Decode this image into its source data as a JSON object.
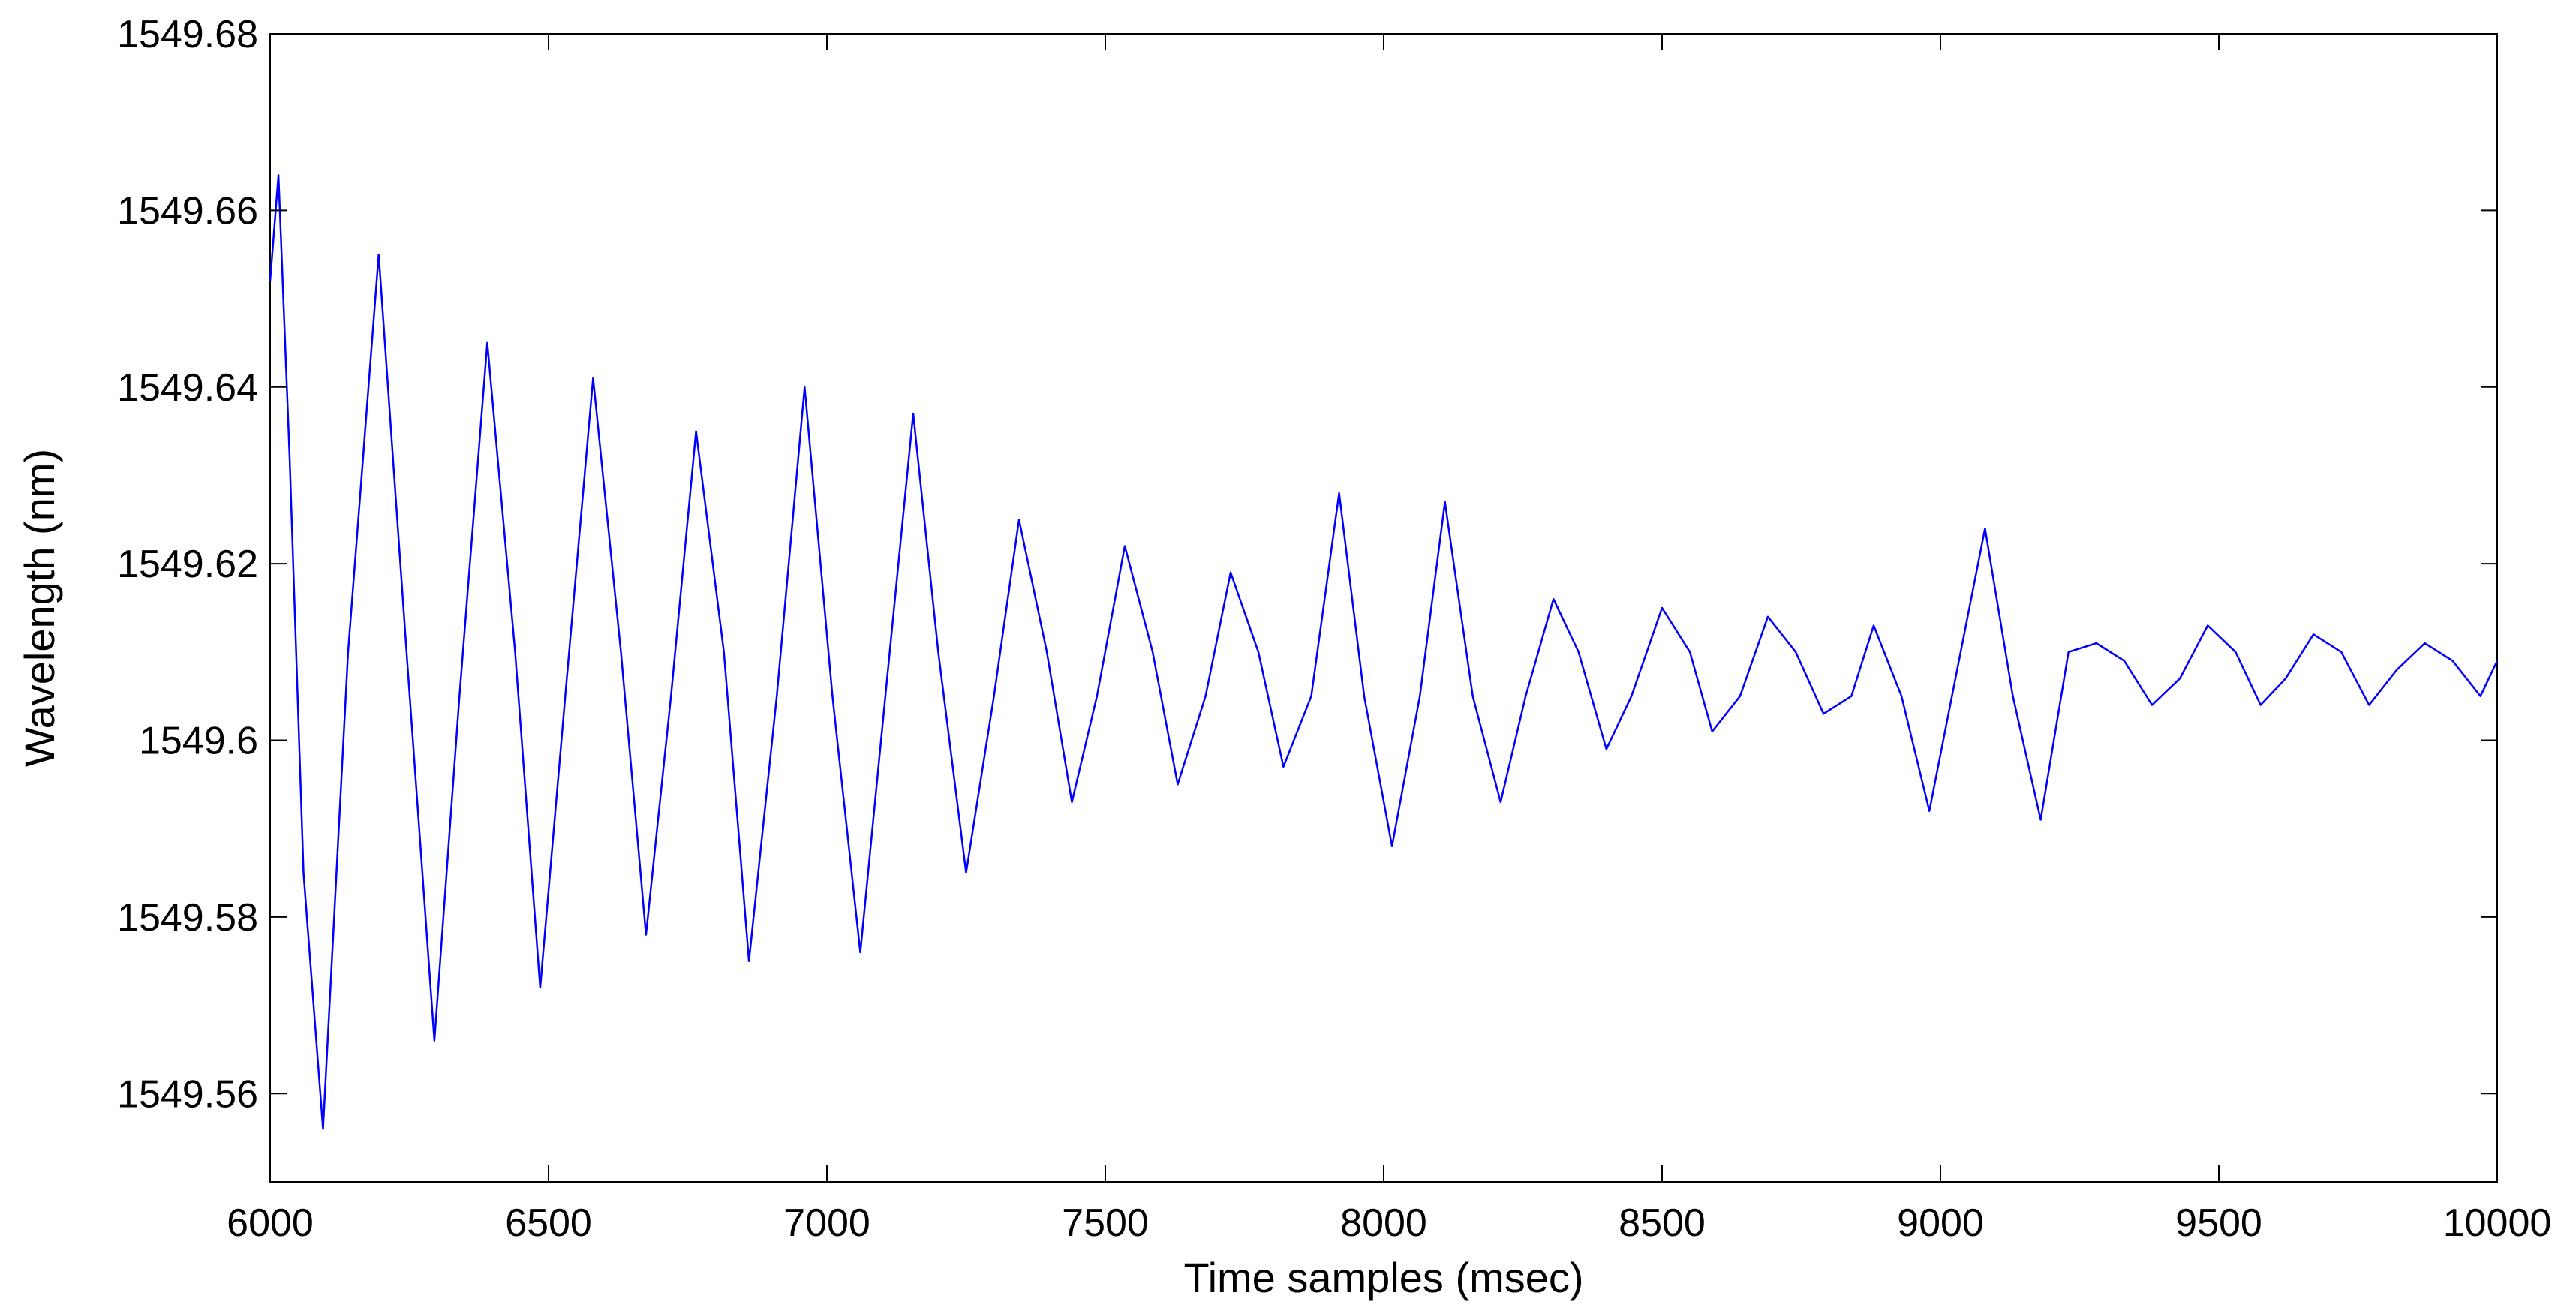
{
  "chart_data": {
    "type": "line",
    "title": "",
    "xlabel": "Time samples (msec)",
    "ylabel": "Wavelength (nm)",
    "xlim": [
      6000,
      10000
    ],
    "ylim": [
      1549.55,
      1549.68
    ],
    "x_ticks": [
      6000,
      6500,
      7000,
      7500,
      8000,
      8500,
      9000,
      9500,
      10000
    ],
    "x_tick_labels": [
      "6000",
      "6500",
      "7000",
      "7500",
      "8000",
      "8500",
      "9000",
      "9500",
      "10000"
    ],
    "y_ticks": [
      1549.56,
      1549.58,
      1549.6,
      1549.62,
      1549.64,
      1549.66,
      1549.68
    ],
    "y_tick_labels": [
      "1549.56",
      "1549.58",
      "1549.6",
      "1549.62",
      "1549.64",
      "1549.66",
      "1549.68"
    ],
    "grid": false,
    "legend": "none",
    "line_color": "#0000ff",
    "series": [
      {
        "x": [
          6000,
          6015,
          6035,
          6060,
          6095,
          6140,
          6195,
          6245,
          6295,
          6340,
          6390,
          6440,
          6485,
          6530,
          6580,
          6630,
          6675,
          6720,
          6765,
          6815,
          6860,
          6910,
          6960,
          7010,
          7060,
          7105,
          7155,
          7200,
          7250,
          7300,
          7345,
          7395,
          7440,
          7485,
          7535,
          7585,
          7630,
          7680,
          7725,
          7775,
          7820,
          7870,
          7920,
          7965,
          8015,
          8065,
          8110,
          8160,
          8210,
          8255,
          8305,
          8350,
          8400,
          8445,
          8500,
          8550,
          8590,
          8640,
          8690,
          8740,
          8790,
          8840,
          8880,
          8930,
          8980,
          9030,
          9080,
          9130,
          9180,
          9230,
          9280,
          9330,
          9380,
          9430,
          9480,
          9530,
          9575,
          9620,
          9670,
          9720,
          9770,
          9820,
          9870,
          9920,
          9970,
          10000
        ],
        "y": [
          1549.652,
          1549.664,
          1549.632,
          1549.585,
          1549.556,
          1549.61,
          1549.655,
          1549.61,
          1549.566,
          1549.605,
          1549.645,
          1549.61,
          1549.572,
          1549.605,
          1549.641,
          1549.61,
          1549.578,
          1549.605,
          1549.635,
          1549.61,
          1549.575,
          1549.605,
          1549.64,
          1549.605,
          1549.576,
          1549.605,
          1549.637,
          1549.61,
          1549.585,
          1549.605,
          1549.625,
          1549.61,
          1549.593,
          1549.605,
          1549.622,
          1549.61,
          1549.595,
          1549.605,
          1549.619,
          1549.61,
          1549.597,
          1549.605,
          1549.628,
          1549.605,
          1549.588,
          1549.605,
          1549.627,
          1549.605,
          1549.593,
          1549.605,
          1549.616,
          1549.61,
          1549.599,
          1549.605,
          1549.615,
          1549.61,
          1549.601,
          1549.605,
          1549.614,
          1549.61,
          1549.603,
          1549.605,
          1549.613,
          1549.605,
          1549.592,
          1549.608,
          1549.624,
          1549.605,
          1549.591,
          1549.61,
          1549.611,
          1549.609,
          1549.604,
          1549.607,
          1549.613,
          1549.61,
          1549.604,
          1549.607,
          1549.612,
          1549.61,
          1549.604,
          1549.608,
          1549.611,
          1549.609,
          1549.605,
          1549.609
        ]
      }
    ]
  }
}
